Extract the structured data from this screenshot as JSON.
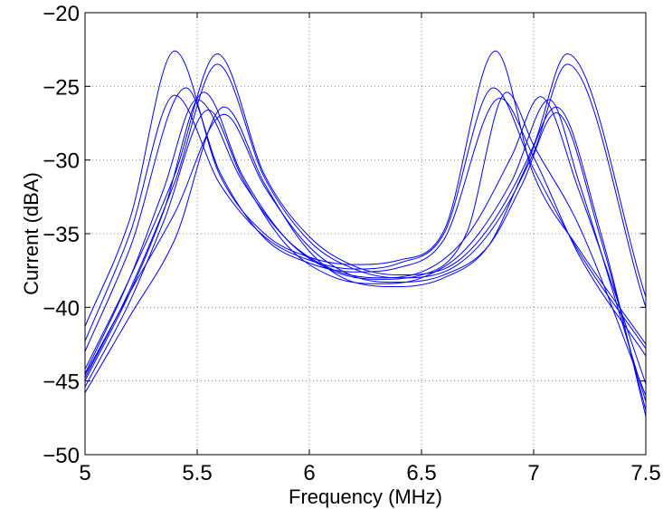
{
  "chart_data": {
    "type": "line",
    "title": "",
    "xlabel": "Frequency (MHz)",
    "ylabel": "Current (dBA)",
    "xlim": [
      5,
      7.5
    ],
    "ylim": [
      -50,
      -20
    ],
    "xticks": [
      "5",
      "5.5",
      "6",
      "6.5",
      "7",
      "7.5"
    ],
    "yticks": [
      "-20",
      "-25",
      "-30",
      "-35",
      "-40",
      "-45",
      "-50"
    ],
    "grid": true,
    "grid_style": "dotted",
    "line_color": "#0000ff",
    "series": [
      {
        "x": [
          5,
          5.2,
          5.4,
          5.6,
          5.8,
          6.0,
          6.2,
          6.4,
          6.6,
          6.83,
          7.0,
          7.2,
          7.5
        ],
        "values": [
          -41.3,
          -34.0,
          -22.6,
          -31.0,
          -35.0,
          -36.6,
          -37.1,
          -36.8,
          -34.8,
          -22.6,
          -31.0,
          -36.0,
          -42.5
        ]
      },
      {
        "x": [
          5,
          5.2,
          5.4,
          5.6,
          5.8,
          6.0,
          6.2,
          6.4,
          6.6,
          6.82,
          7.0,
          7.2,
          7.5
        ],
        "values": [
          -42.3,
          -35.0,
          -25.6,
          -31.6,
          -35.2,
          -36.8,
          -37.4,
          -37.0,
          -35.0,
          -25.1,
          -30.6,
          -36.2,
          -42.8
        ]
      },
      {
        "x": [
          5,
          5.2,
          5.45,
          5.6,
          5.8,
          6.0,
          6.2,
          6.4,
          6.6,
          6.85,
          7.0,
          7.2,
          7.5
        ],
        "values": [
          -43.0,
          -36.0,
          -25.1,
          -30.8,
          -35.3,
          -37.0,
          -37.6,
          -37.3,
          -35.4,
          -25.8,
          -29.8,
          -36.4,
          -43.3
        ]
      },
      {
        "x": [
          5,
          5.2,
          5.4,
          5.59,
          5.8,
          6.0,
          6.2,
          6.4,
          6.6,
          6.8,
          7.0,
          7.15,
          7.5
        ],
        "values": [
          -44.2,
          -38.0,
          -31.0,
          -22.8,
          -31.0,
          -35.2,
          -37.2,
          -37.8,
          -37.4,
          -34.6,
          -29.0,
          -22.8,
          -39.3
        ]
      },
      {
        "x": [
          5,
          5.2,
          5.4,
          5.59,
          5.8,
          6.0,
          6.2,
          6.4,
          6.6,
          6.8,
          7.0,
          7.15,
          7.5
        ],
        "values": [
          -44.8,
          -38.8,
          -31.5,
          -23.5,
          -31.2,
          -35.5,
          -37.4,
          -38.0,
          -37.6,
          -35.0,
          -29.5,
          -23.5,
          -40.0
        ]
      },
      {
        "x": [
          5,
          5.2,
          5.35,
          5.5,
          5.7,
          5.9,
          6.1,
          6.3,
          6.5,
          6.7,
          6.9,
          7.03,
          7.2,
          7.5
        ],
        "values": [
          -44.5,
          -38.0,
          -32.0,
          -25.9,
          -31.4,
          -35.4,
          -37.4,
          -38.0,
          -37.6,
          -35.2,
          -29.8,
          -25.7,
          -32.0,
          -45.2
        ]
      },
      {
        "x": [
          5,
          5.2,
          5.35,
          5.53,
          5.7,
          5.9,
          6.1,
          6.3,
          6.5,
          6.7,
          6.88,
          7.0,
          7.2,
          7.5
        ],
        "values": [
          -45.0,
          -39.0,
          -33.5,
          -25.4,
          -31.0,
          -35.4,
          -37.5,
          -38.1,
          -37.8,
          -35.0,
          -25.4,
          -29.0,
          -34.4,
          -46.0
        ]
      },
      {
        "x": [
          5,
          5.2,
          5.35,
          5.55,
          5.7,
          5.9,
          6.1,
          6.3,
          6.5,
          6.7,
          6.9,
          7.07,
          7.2,
          7.5
        ],
        "values": [
          -45.4,
          -39.6,
          -34.2,
          -26.6,
          -31.2,
          -35.8,
          -37.9,
          -38.4,
          -38.0,
          -36.0,
          -31.5,
          -25.9,
          -31.4,
          -46.4
        ]
      },
      {
        "x": [
          5,
          5.2,
          5.4,
          5.62,
          5.8,
          6.0,
          6.2,
          6.4,
          6.6,
          6.8,
          6.95,
          7.1,
          7.3,
          7.5
        ],
        "values": [
          -45.8,
          -40.6,
          -35.4,
          -26.4,
          -31.6,
          -36.2,
          -38.3,
          -38.6,
          -38.0,
          -35.8,
          -31.0,
          -26.4,
          -35.0,
          -47.4
        ]
      },
      {
        "x": [
          5,
          5.2,
          5.4,
          5.62,
          5.8,
          6.0,
          6.2,
          6.4,
          6.6,
          6.8,
          6.95,
          7.1,
          7.3,
          7.5
        ],
        "values": [
          -44.6,
          -39.0,
          -33.6,
          -26.9,
          -31.8,
          -35.9,
          -37.9,
          -38.3,
          -37.8,
          -35.8,
          -31.6,
          -26.8,
          -35.4,
          -47.0
        ]
      }
    ]
  }
}
